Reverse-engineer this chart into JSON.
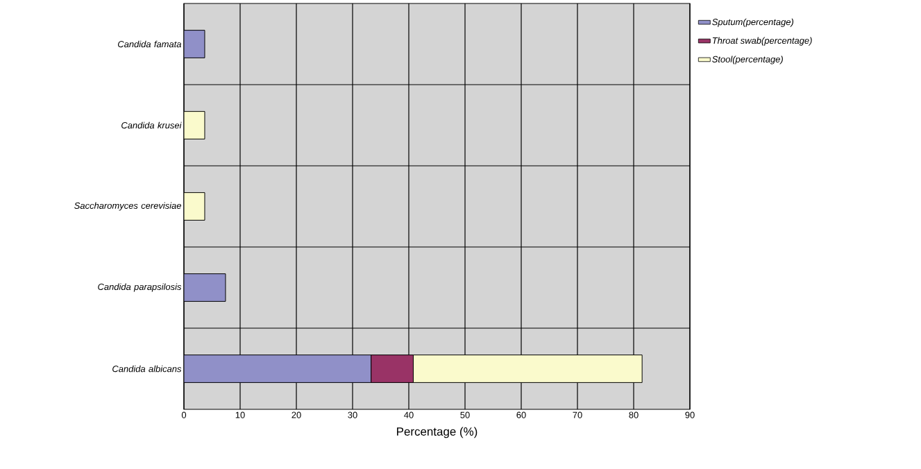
{
  "chart_data": {
    "type": "bar",
    "orientation": "horizontal",
    "stacked": true,
    "xlabel": "Percentage (%)",
    "categories": [
      "Candida famata",
      "Candida krusei",
      "Saccharomyces cerevisiae",
      "Candida parapsilosis",
      "Candida albicans"
    ],
    "series": [
      {
        "name": "Sputum(percentage)",
        "color": "#9090c8",
        "values": [
          3.7,
          null,
          null,
          7.4,
          33.3
        ]
      },
      {
        "name": "Throat swab(percentage)",
        "color": "#993366",
        "values": [
          null,
          null,
          null,
          null,
          7.5
        ]
      },
      {
        "name": "Stool(percentage)",
        "color": "#fafacc",
        "values": [
          null,
          3.7,
          3.7,
          null,
          40.7
        ]
      }
    ],
    "xlim": [
      0,
      90
    ],
    "xticks": [
      0,
      10,
      20,
      30,
      40,
      50,
      60,
      70,
      80,
      90
    ],
    "grid": true,
    "legend": "right"
  }
}
